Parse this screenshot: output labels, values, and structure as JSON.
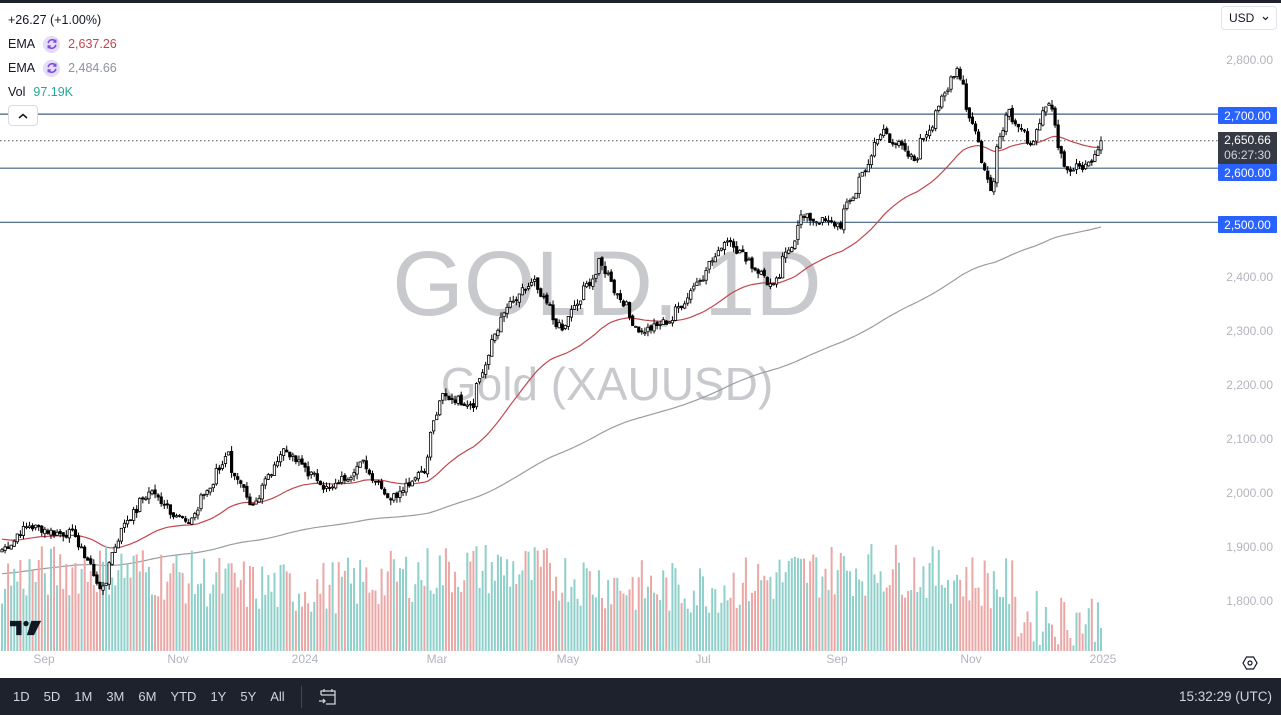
{
  "header": {
    "change": "+26.27 (+1.00%)",
    "indicators": [
      {
        "name": "EMA",
        "icon": "refresh-icon",
        "value": "2,637.26",
        "color": "#c2464e"
      },
      {
        "name": "EMA",
        "icon": "refresh-icon",
        "value": "2,484.66",
        "color": "#8f939b"
      },
      {
        "name": "Vol",
        "value": "97.19K",
        "color": "#26a69a"
      }
    ],
    "collapse_icon": "chevron-up-icon",
    "currency": "USD"
  },
  "watermark": {
    "title": "GOLD, 1D",
    "subtitle": "Gold (XAUUSD)"
  },
  "price_axis": {
    "labels": [
      "2,800.00",
      "2,400.00",
      "2,300.00",
      "2,200.00",
      "2,100.00",
      "2,000.00",
      "1,900.00",
      "1,800.00"
    ],
    "horizontal_levels": [
      "2,700.00",
      "2,600.00",
      "2,500.00"
    ],
    "current_price": "2,650.66",
    "countdown": "06:27:30"
  },
  "time_axis": {
    "labels": [
      "Sep",
      "Nov",
      "2024",
      "Mar",
      "May",
      "Jul",
      "Sep",
      "Nov",
      "2025"
    ]
  },
  "bottom_bar": {
    "ranges": [
      "1D",
      "5D",
      "1M",
      "3M",
      "6M",
      "YTD",
      "1Y",
      "5Y",
      "All"
    ],
    "date_range_icon": "calendar-goto-icon",
    "clock": "15:32:29 (UTC)"
  },
  "colors": {
    "level_line": "#3d6181",
    "tag_blue": "#2962ff",
    "ema_fast": "#c2464e",
    "ema_slow": "#9a9ca3",
    "vol_up": "#8fd0ca",
    "vol_down": "#eba7a5"
  },
  "chart_data": {
    "type": "candlestick",
    "title": "GOLD, 1D — Gold (XAUUSD)",
    "xlabel": "",
    "ylabel": "USD",
    "ylim": [
      1730,
      2850
    ],
    "grid": false,
    "x_ticks": [
      "Sep",
      "Nov",
      "2024",
      "Mar",
      "May",
      "Jul",
      "Sep",
      "Nov",
      "2025"
    ],
    "y_ticks": [
      1800,
      1900,
      2000,
      2100,
      2200,
      2300,
      2400,
      2500,
      2600,
      2700,
      2800
    ],
    "horizontal_levels": [
      2700,
      2600,
      2500
    ],
    "last_price": 2650.66,
    "change": 26.27,
    "change_pct": 1.0,
    "ema_fast_last": 2637.26,
    "ema_slow_last": 2484.66,
    "volume_last": "97.19K",
    "approx_close_path": [
      {
        "date": "2023-08-21",
        "close": 1895
      },
      {
        "date": "2023-09-01",
        "close": 1940
      },
      {
        "date": "2023-09-15",
        "close": 1925
      },
      {
        "date": "2023-09-22",
        "close": 1925
      },
      {
        "date": "2023-10-05",
        "close": 1820
      },
      {
        "date": "2023-10-13",
        "close": 1930
      },
      {
        "date": "2023-10-27",
        "close": 2005
      },
      {
        "date": "2023-11-13",
        "close": 1940
      },
      {
        "date": "2023-12-01",
        "close": 2070
      },
      {
        "date": "2023-12-04",
        "close": 2030
      },
      {
        "date": "2023-12-13",
        "close": 1980
      },
      {
        "date": "2023-12-27",
        "close": 2080
      },
      {
        "date": "2024-01-17",
        "close": 2005
      },
      {
        "date": "2024-02-01",
        "close": 2055
      },
      {
        "date": "2024-02-14",
        "close": 1990
      },
      {
        "date": "2024-02-29",
        "close": 2045
      },
      {
        "date": "2024-03-08",
        "close": 2180
      },
      {
        "date": "2024-03-22",
        "close": 2165
      },
      {
        "date": "2024-04-05",
        "close": 2330
      },
      {
        "date": "2024-04-19",
        "close": 2390
      },
      {
        "date": "2024-05-02",
        "close": 2300
      },
      {
        "date": "2024-05-20",
        "close": 2425
      },
      {
        "date": "2024-06-07",
        "close": 2295
      },
      {
        "date": "2024-06-21",
        "close": 2320
      },
      {
        "date": "2024-07-17",
        "close": 2470
      },
      {
        "date": "2024-08-07",
        "close": 2380
      },
      {
        "date": "2024-08-20",
        "close": 2510
      },
      {
        "date": "2024-09-06",
        "close": 2495
      },
      {
        "date": "2024-09-26",
        "close": 2670
      },
      {
        "date": "2024-10-10",
        "close": 2615
      },
      {
        "date": "2024-10-30",
        "close": 2785
      },
      {
        "date": "2024-11-14",
        "close": 2565
      },
      {
        "date": "2024-11-22",
        "close": 2715
      },
      {
        "date": "2024-12-02",
        "close": 2640
      },
      {
        "date": "2024-12-11",
        "close": 2718
      },
      {
        "date": "2024-12-19",
        "close": 2595
      },
      {
        "date": "2024-12-30",
        "close": 2608
      },
      {
        "date": "2025-01-03",
        "close": 2650.66
      }
    ]
  }
}
